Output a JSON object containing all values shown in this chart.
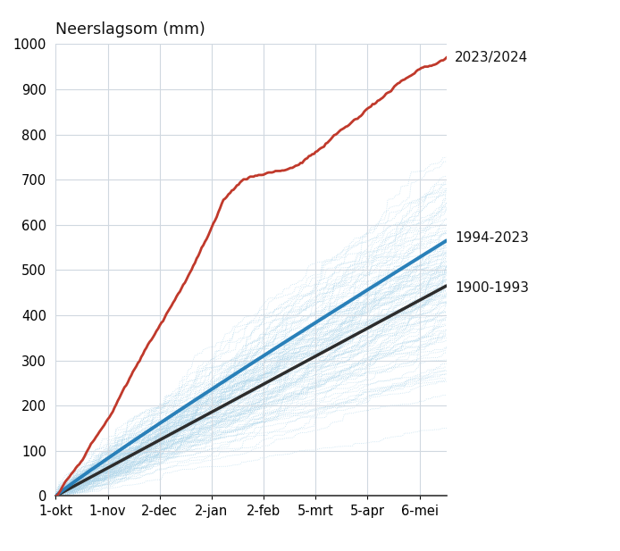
{
  "title": "Neerslagsom (mm)",
  "x_tick_labels": [
    "1-okt",
    "1-nov",
    "2-dec",
    "2-jan",
    "2-feb",
    "5-mrt",
    "5-apr",
    "6-mei"
  ],
  "x_tick_positions": [
    0,
    31,
    62,
    93,
    124,
    155,
    186,
    217
  ],
  "ylim": [
    0,
    1000
  ],
  "yticks": [
    0,
    100,
    200,
    300,
    400,
    500,
    600,
    700,
    800,
    900,
    1000
  ],
  "background_color": "#ffffff",
  "grid_color": "#d0d8e0",
  "red_color": "#c0392b",
  "blue_mean_color": "#2980b9",
  "black_mean_color": "#2c2c2c",
  "light_blue_color": "#aad4ea",
  "label_1994_2023": "1994-2023",
  "label_1900_1993": "1900-1993",
  "label_2023_2024": "2023/2024",
  "n_days": 233,
  "old_mean_final": 465,
  "new_mean_final": 565,
  "red_final": 970,
  "n_historical_years": 94,
  "n_recent_years": 30,
  "red_line_waypoints": [
    [
      0,
      0
    ],
    [
      10,
      60
    ],
    [
      20,
      120
    ],
    [
      31,
      185
    ],
    [
      45,
      280
    ],
    [
      60,
      380
    ],
    [
      75,
      480
    ],
    [
      90,
      590
    ],
    [
      100,
      660
    ],
    [
      110,
      705
    ],
    [
      115,
      715
    ],
    [
      124,
      720
    ],
    [
      130,
      725
    ],
    [
      140,
      735
    ],
    [
      150,
      755
    ],
    [
      160,
      780
    ],
    [
      170,
      810
    ],
    [
      180,
      840
    ],
    [
      190,
      875
    ],
    [
      200,
      905
    ],
    [
      210,
      930
    ],
    [
      220,
      950
    ],
    [
      233,
      970
    ]
  ]
}
